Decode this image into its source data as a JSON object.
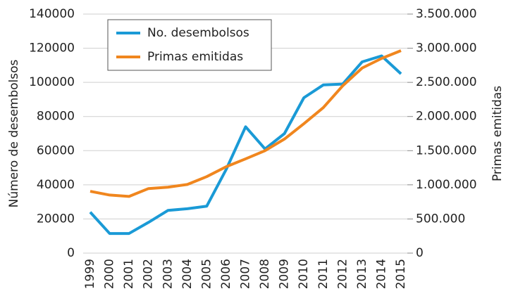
{
  "chart_data": {
    "type": "line",
    "ylabel": "Número de desembolsos",
    "y2label": "Primas emitidas",
    "categories": [
      "1999",
      "2000",
      "2001",
      "2002",
      "2003",
      "2004",
      "2005",
      "2006",
      "2007",
      "2008",
      "2009",
      "2010",
      "2011",
      "2012",
      "2013",
      "2014",
      "2015"
    ],
    "series": [
      {
        "name": "No. desembolsos",
        "color": "#1a9ad6",
        "axis": "y",
        "values": [
          24000,
          11500,
          11500,
          18000,
          25000,
          26000,
          27500,
          49000,
          74000,
          61000,
          70000,
          91000,
          98500,
          99000,
          112000,
          115500,
          105000
        ]
      },
      {
        "name": "Primas emitidas",
        "color": "#f0861e",
        "axis": "y2",
        "values": [
          905000,
          850000,
          830000,
          945000,
          965000,
          1005000,
          1120000,
          1265000,
          1380000,
          1500000,
          1670000,
          1895000,
          2130000,
          2450000,
          2710000,
          2850000,
          2965000
        ]
      }
    ],
    "ylim": [
      0,
      140000
    ],
    "yticks": [
      0,
      20000,
      40000,
      60000,
      80000,
      100000,
      120000,
      140000
    ],
    "y2lim": [
      0,
      3500000
    ],
    "y2ticks": [
      0,
      {
        "value": 500000,
        "label": "500.000"
      },
      {
        "value": 1000000,
        "label": "1.000.000"
      },
      {
        "value": 1500000,
        "label": "1.500.000"
      },
      {
        "value": 2000000,
        "label": "2.000.000"
      },
      {
        "value": 2500000,
        "label": "2.500.000"
      },
      {
        "value": 3000000,
        "label": "3.000.000"
      },
      {
        "value": 3500000,
        "label": "3.500.000"
      }
    ],
    "grid": true,
    "legend": "upper left"
  }
}
